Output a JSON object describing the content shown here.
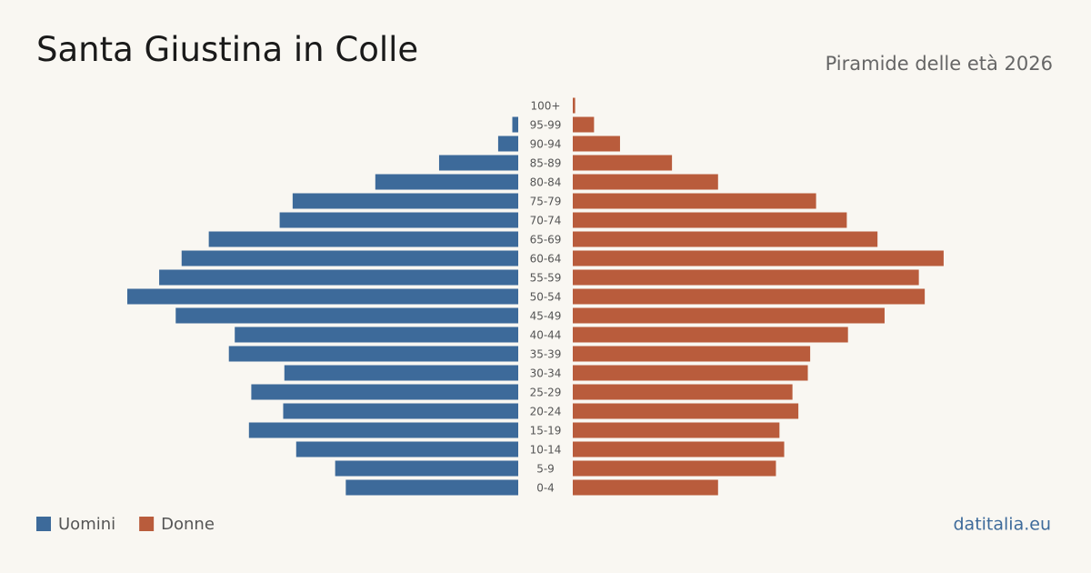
{
  "chart_data": {
    "type": "pyramid",
    "title": "Santa Giustina in Colle",
    "subtitle": "Piramide delle età 2026",
    "source": "datitalia.eu",
    "categories": [
      "100+",
      "95-99",
      "90-94",
      "85-89",
      "80-84",
      "75-79",
      "70-74",
      "65-69",
      "60-64",
      "55-59",
      "50-54",
      "45-49",
      "40-44",
      "35-39",
      "30-34",
      "25-29",
      "20-24",
      "15-19",
      "10-14",
      "5-9",
      "0-4"
    ],
    "series": [
      {
        "name": "Uomini",
        "color": "#3d6a9a",
        "side": "left",
        "values": [
          0,
          5,
          17,
          67,
          121,
          191,
          202,
          262,
          285,
          304,
          331,
          290,
          240,
          245,
          198,
          226,
          199,
          228,
          188,
          155,
          146
        ]
      },
      {
        "name": "Donne",
        "color": "#b95c3c",
        "side": "right",
        "values": [
          2,
          18,
          40,
          84,
          123,
          206,
          232,
          258,
          314,
          293,
          298,
          264,
          233,
          201,
          199,
          186,
          191,
          175,
          179,
          172,
          123
        ]
      }
    ]
  }
}
